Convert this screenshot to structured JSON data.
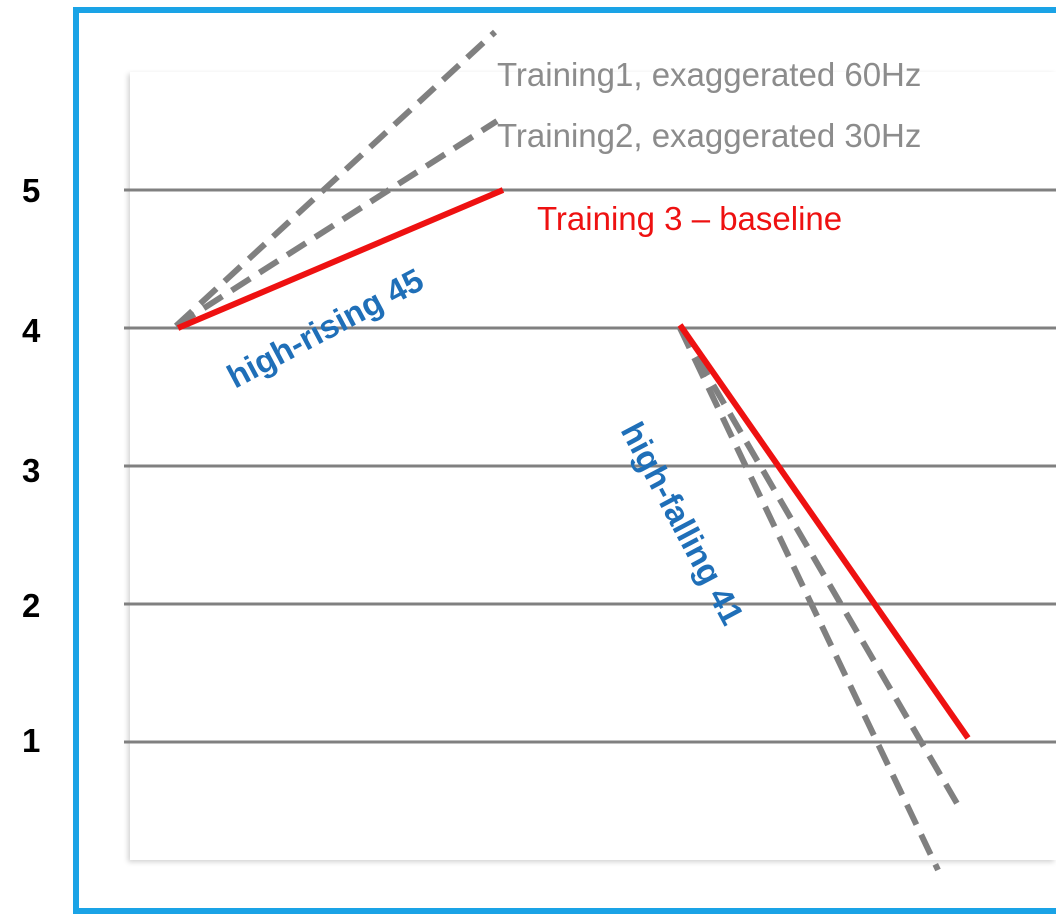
{
  "scale": {
    "levels": [
      {
        "label": "5",
        "value": 5
      },
      {
        "label": "4",
        "value": 4
      },
      {
        "label": "3",
        "value": 3
      },
      {
        "label": "2",
        "value": 2
      },
      {
        "label": "1",
        "value": 1
      }
    ]
  },
  "legend": {
    "training1": "Training1, exaggerated 60Hz",
    "training2": "Training2, exaggerated 30Hz",
    "training3": "Training 3 – baseline"
  },
  "tones": {
    "rising": "high-rising 45",
    "falling": "high-falling 41"
  },
  "colors": {
    "frame": "#1aa3e6",
    "baseline": "#ee1111",
    "exaggerated": "#808080",
    "tone_label": "#1f6fb8",
    "legend_gray": "#8c8c8c",
    "grid": "#808080"
  }
}
